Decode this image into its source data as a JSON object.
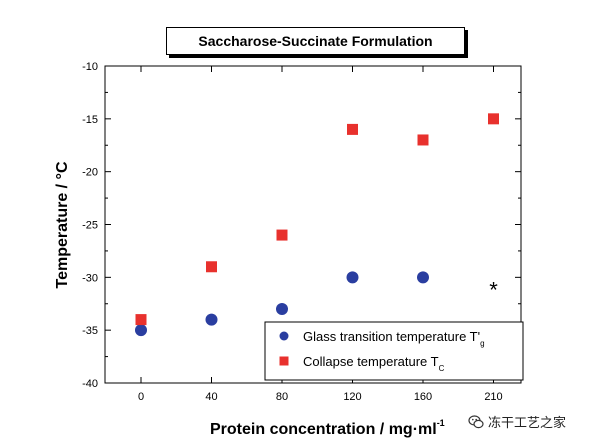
{
  "chart_data": {
    "type": "scatter",
    "title": "Saccharose-Succinate Formulation",
    "xlabel": "Protein concentration / mg·ml",
    "xlabel_superscript": "-1",
    "ylabel": "Temperature / °C",
    "categories": [
      "0",
      "40",
      "80",
      "120",
      "160",
      "210"
    ],
    "ylim": [
      -40,
      -10
    ],
    "yticks": [
      -10,
      -15,
      -20,
      -25,
      -30,
      -35,
      -40
    ],
    "grid": false,
    "legend_position": "bottom-right",
    "series": [
      {
        "name": "Glass transition temperature T'",
        "name_subscript": "g",
        "marker": "circle",
        "color": "#2a3ea0",
        "values": [
          -35,
          -34,
          -33,
          -30,
          -30,
          null
        ]
      },
      {
        "name": "Collapse temperature T",
        "name_subscript": "C",
        "marker": "square",
        "color": "#e8312d",
        "values": [
          -34,
          -29,
          -26,
          -16,
          -17,
          -15
        ]
      }
    ],
    "annotations": [
      {
        "text": "*",
        "category": "210",
        "y": -30.5
      }
    ]
  },
  "watermark": {
    "text": "冻干工艺之家",
    "icon": "wechat-icon"
  }
}
